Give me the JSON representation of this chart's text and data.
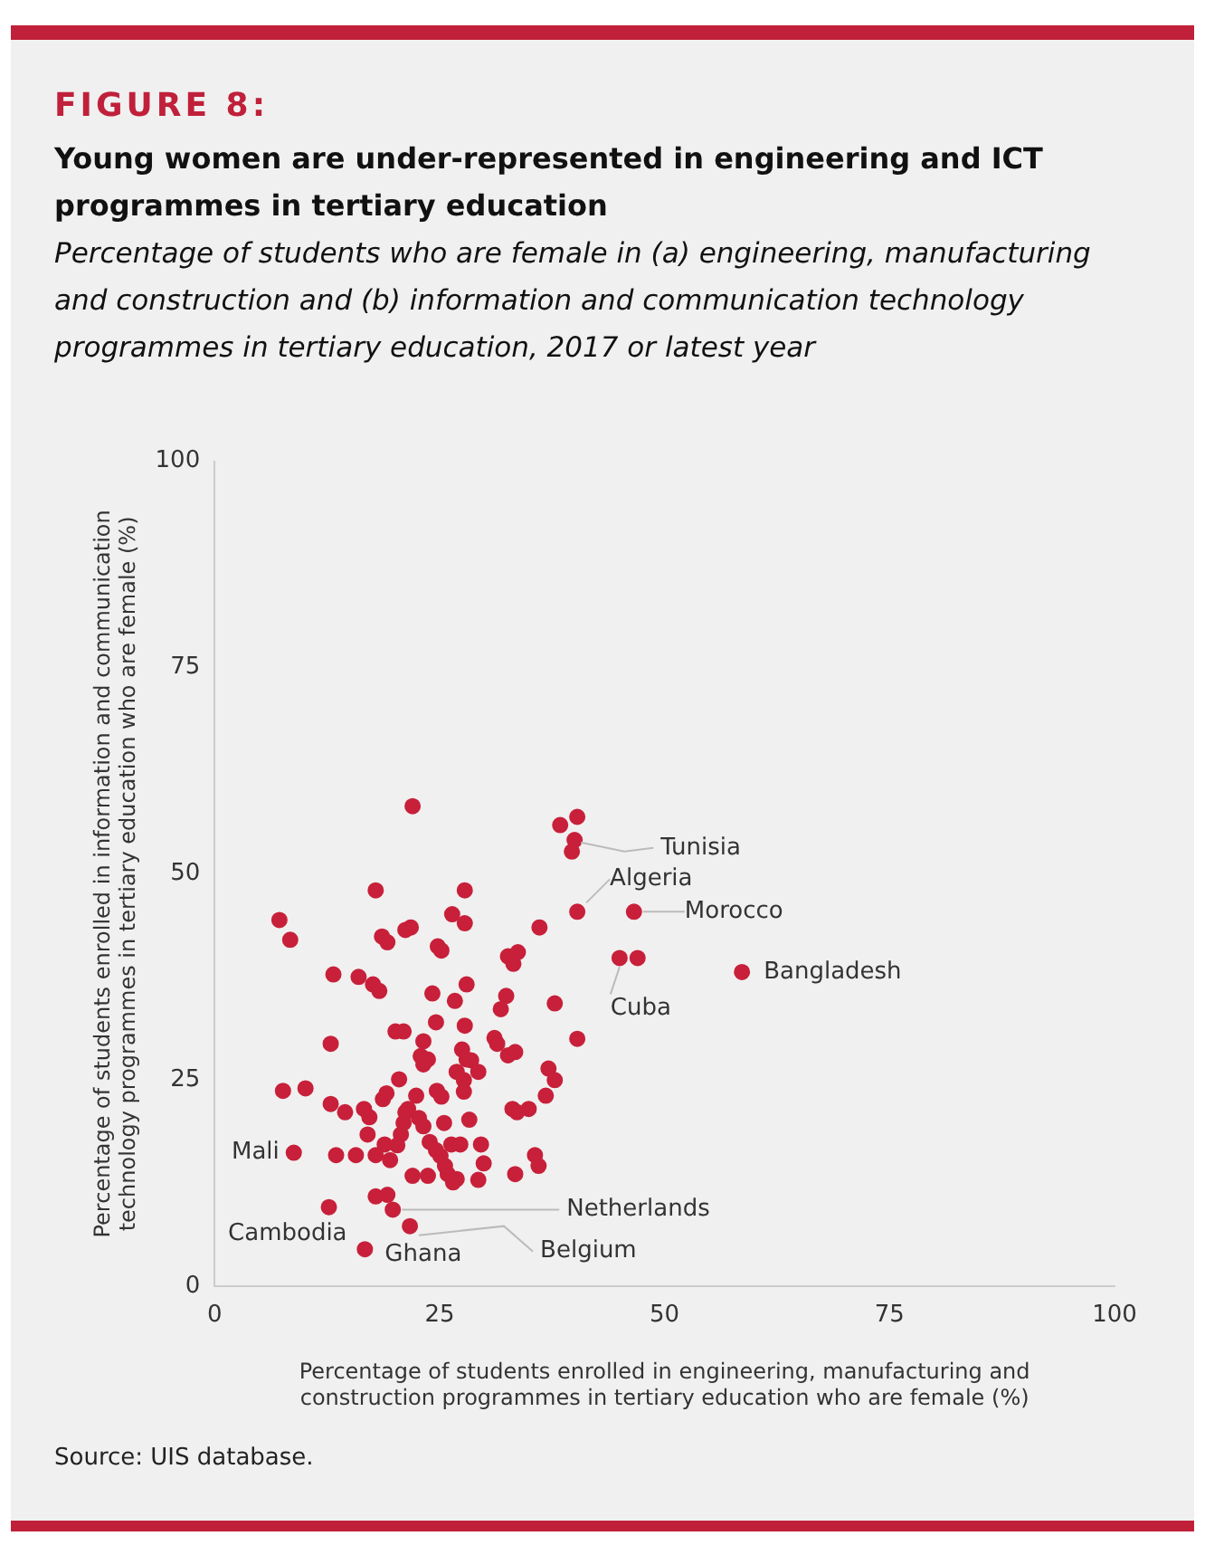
{
  "chart_data": {
    "type": "scatter",
    "title": "FIGURE 8:",
    "subtitle": "Young women are under-represented in engineering and ICT programmes in tertiary education",
    "annotations": [
      "Percentage of students who are female in (a) engineering, manufacturing and construction and (b) information and communication technology programmes in tertiary education, 2017 or latest year",
      {
        "text": "Tunisia",
        "x": 39.7,
        "y": 52.7
      },
      {
        "text": "Algeria",
        "x": 40.3,
        "y": 45.4
      },
      {
        "text": "Morocco",
        "x": 46.6,
        "y": 45.4
      },
      {
        "text": "Bangladesh",
        "x": 58.6,
        "y": 38.1
      },
      {
        "text": "Cuba",
        "x": 45.0,
        "y": 39.8
      },
      {
        "text": "Mali",
        "x": 8.8,
        "y": 16.2
      },
      {
        "text": "Netherlands",
        "x": 19.8,
        "y": 9.3
      },
      {
        "text": "Belgium",
        "x": 21.7,
        "y": 7.3
      },
      {
        "text": "Cambodia",
        "x": 12.7,
        "y": 9.6
      },
      {
        "text": "Ghana",
        "x": 16.7,
        "y": 4.5
      },
      "Source: UIS database."
    ],
    "xlabel": "Percentage of students enrolled in engineering, manufacturing and construction programmes in tertiary education who are female (%)",
    "ylabel": "Percentage of students enrolled in information and communication technology programmes in tertiary education who are female (%)",
    "xlim": [
      0,
      100
    ],
    "xticks": [
      0,
      25,
      50,
      75,
      100
    ],
    "ylim": [
      0,
      100
    ],
    "yticks": [
      0,
      25,
      50,
      75,
      100
    ],
    "grid": false,
    "legend": false,
    "marker": "circle",
    "series": [
      {
        "color": "#c8203a",
        "x": [
          22.0,
          17.9,
          27.8,
          7.2,
          8.4,
          18.6,
          19.2,
          21.2,
          21.8,
          26.4,
          27.8,
          24.8,
          25.2,
          36.1,
          13.2,
          16.0,
          17.6,
          18.3,
          24.2,
          28.0,
          26.7,
          32.6,
          33.2,
          33.7,
          32.4,
          31.8,
          24.6,
          27.8,
          12.9,
          20.1,
          21.0,
          23.2,
          31.1,
          31.4,
          32.6,
          33.4,
          22.9,
          23.7,
          23.2,
          27.5,
          28.0,
          26.9,
          28.5,
          29.3,
          20.5,
          27.7,
          27.7,
          24.7,
          25.2,
          22.4,
          7.6,
          10.1,
          12.9,
          14.5,
          16.6,
          17.2,
          18.7,
          19.1,
          21.2,
          21.5,
          21.0,
          22.7,
          23.2,
          25.5,
          28.3,
          33.1,
          33.6,
          34.9,
          17.0,
          20.7,
          20.3,
          18.9,
          17.9,
          19.5,
          23.9,
          24.6,
          26.3,
          27.3,
          29.6,
          29.9,
          25.1,
          25.6,
          8.8,
          13.5,
          15.7,
          22.0,
          23.7,
          25.9,
          26.5,
          26.9,
          29.3,
          33.4,
          17.9,
          19.2,
          19.8,
          12.7,
          21.7,
          16.7,
          38.4,
          40.3,
          40.0,
          39.7,
          40.3,
          46.6,
          45.0,
          47.0,
          58.6,
          37.8,
          40.3,
          37.1,
          37.8,
          36.8,
          35.6,
          36.0
        ],
        "values": [
          58.2,
          48.0,
          48.0,
          44.4,
          42.0,
          42.4,
          41.7,
          43.2,
          43.5,
          45.1,
          44.0,
          41.2,
          40.7,
          43.5,
          37.8,
          37.5,
          36.6,
          35.8,
          35.5,
          36.6,
          34.6,
          40.0,
          39.1,
          40.5,
          35.2,
          33.6,
          32.0,
          31.6,
          29.4,
          30.9,
          30.9,
          29.7,
          30.1,
          29.4,
          28.0,
          28.4,
          27.9,
          27.5,
          26.9,
          28.7,
          27.5,
          26.0,
          27.4,
          26.0,
          25.1,
          25.0,
          23.6,
          23.7,
          23.0,
          23.1,
          23.7,
          24.0,
          22.1,
          21.1,
          21.5,
          20.5,
          22.7,
          23.4,
          21.1,
          21.5,
          19.8,
          20.4,
          19.4,
          19.8,
          20.2,
          21.5,
          21.1,
          21.5,
          18.4,
          18.4,
          17.1,
          17.2,
          15.9,
          15.3,
          17.5,
          16.5,
          17.2,
          17.2,
          17.2,
          14.9,
          15.8,
          14.6,
          16.2,
          15.9,
          15.9,
          13.4,
          13.4,
          13.6,
          12.6,
          13.0,
          12.9,
          13.6,
          10.9,
          11.1,
          9.3,
          9.6,
          7.3,
          4.5,
          55.9,
          56.9,
          54.1,
          52.7,
          45.4,
          45.4,
          39.8,
          39.8,
          38.1,
          34.3,
          30.0,
          26.4,
          25.0,
          23.1,
          15.9,
          14.6
        ]
      }
    ]
  }
}
